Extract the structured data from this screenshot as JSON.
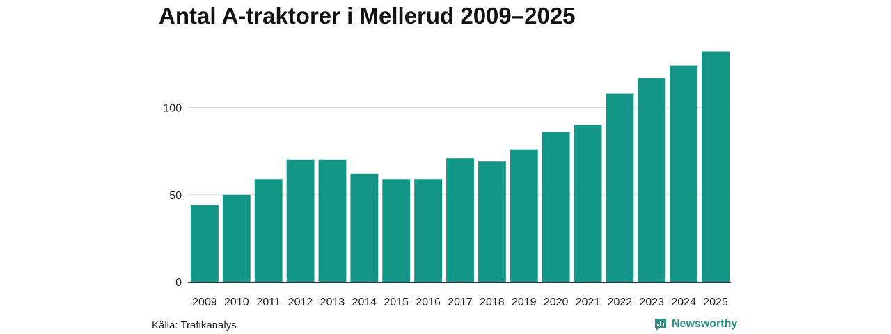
{
  "title": "Antal A-traktorer i Mellerud 2009–2025",
  "source": "Källa: Trafikanalys",
  "brand": {
    "name": "Newsworthy",
    "icon": "newsworthy-logo-icon",
    "color": "#2e8f82"
  },
  "colors": {
    "bar": "#149687",
    "grid": "#dddddd",
    "axis": "#333333"
  },
  "chart_data": {
    "type": "bar",
    "title": "Antal A-traktorer i Mellerud 2009–2025",
    "xlabel": "",
    "ylabel": "",
    "ylim": [
      0,
      133
    ],
    "yticks": [
      0,
      50,
      100
    ],
    "grid": true,
    "legend": "none",
    "categories": [
      "2009",
      "2010",
      "2011",
      "2012",
      "2013",
      "2014",
      "2015",
      "2016",
      "2017",
      "2018",
      "2019",
      "2020",
      "2021",
      "2022",
      "2023",
      "2024",
      "2025"
    ],
    "values": [
      44,
      50,
      59,
      70,
      70,
      62,
      59,
      59,
      71,
      69,
      76,
      86,
      90,
      108,
      117,
      124,
      132
    ]
  }
}
